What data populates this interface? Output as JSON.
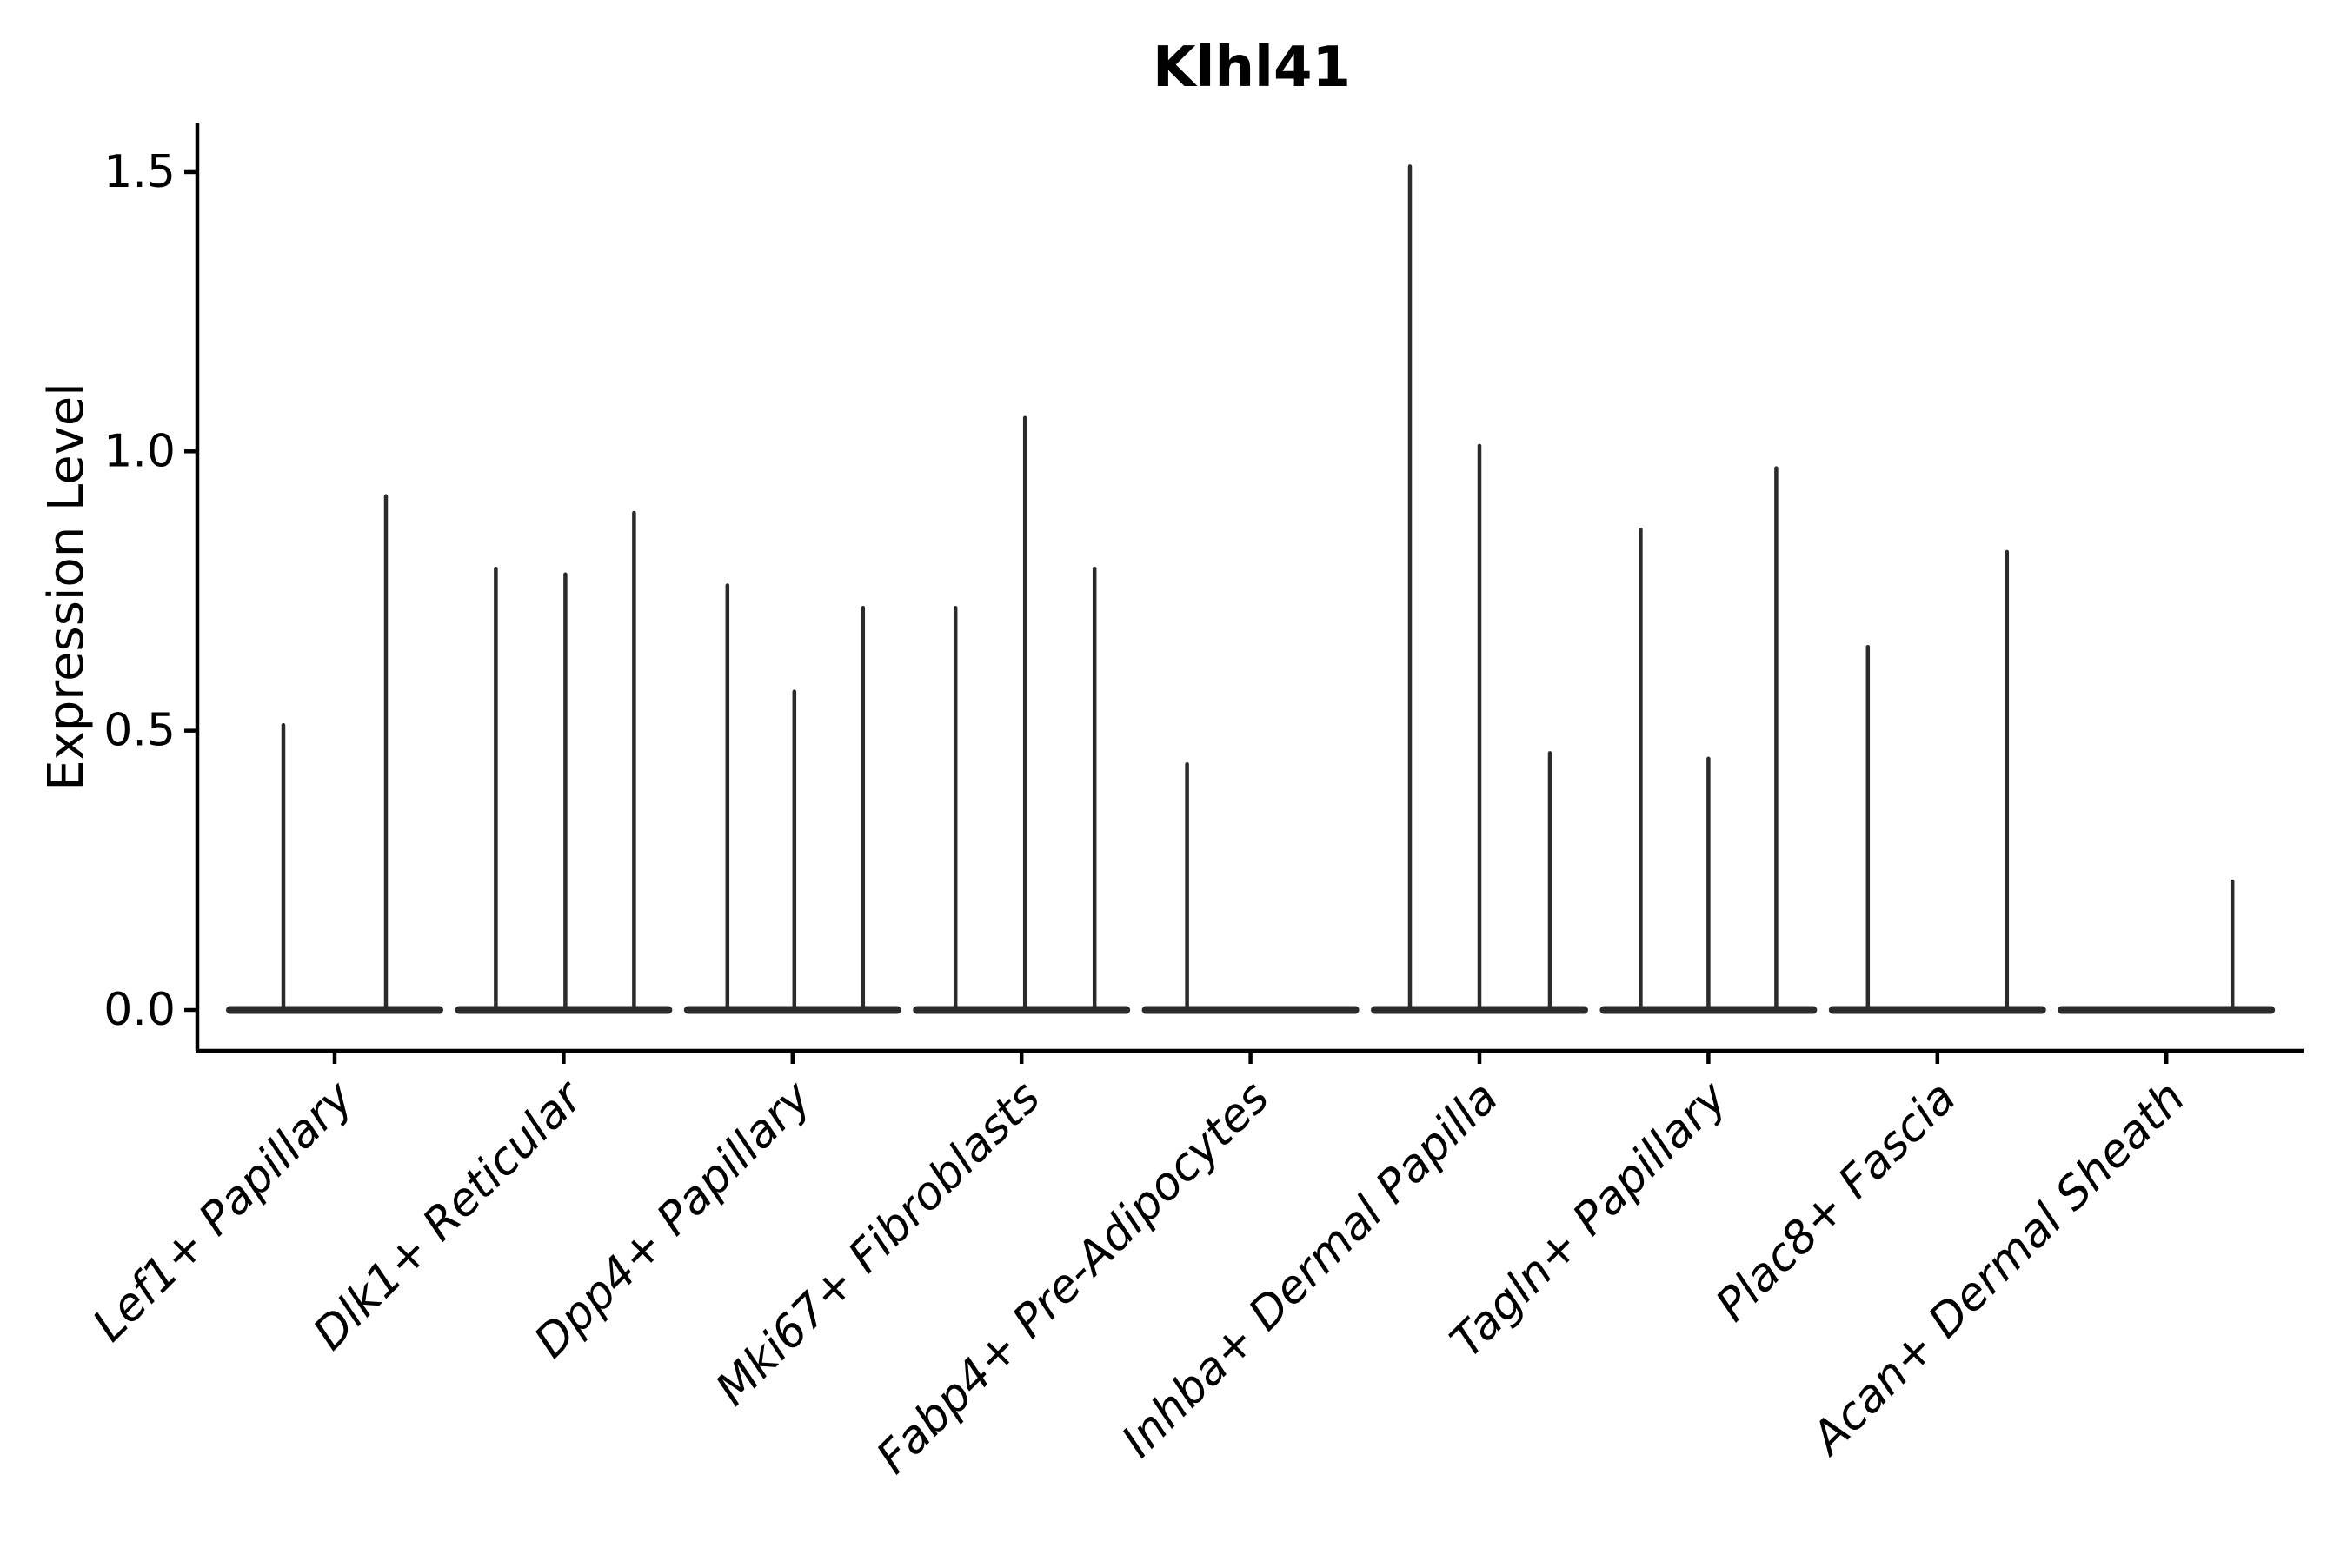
{
  "title": "Klhl41",
  "y_axis": {
    "label": "Expression Level",
    "ticks": [
      {
        "label": "0.0",
        "value": 0.0
      },
      {
        "label": "0.5",
        "value": 0.5
      },
      {
        "label": "1.0",
        "value": 1.0
      },
      {
        "label": "1.5",
        "value": 1.5
      }
    ]
  },
  "x_axis": {
    "tick_labels": [
      "Lef1+ Papillary",
      "Dlk1+ Reticular",
      "Dpp4+ Papillary",
      "Mki67+ Fibroblasts",
      "Fabp4+ Pre-Adipocytes",
      "Inhba+ Dermal Papilla",
      "Tagln+ Papillary",
      "Plac8+ Fascia",
      "Acan+ Dermal Sheath"
    ]
  },
  "chart_data": {
    "type": "violin",
    "title": "Klhl41",
    "xlabel": "",
    "ylabel": "Expression Level",
    "ylim": [
      0,
      1.55
    ],
    "yticks": [
      0.0,
      0.5,
      1.0,
      1.5
    ],
    "grid": false,
    "legend": "none",
    "note": "Needle-like violins: nearly all density collapsed at 0 (flat baseline bar per group) with thin spikes rising to each sub-violin maximum expression value. dx = horizontal offset of each sub-violin spike from its group center in plot pixels.",
    "groups": [
      {
        "label": "Lef1+ Papillary",
        "violins": [
          {
            "dx": -59,
            "max": 0.51
          },
          {
            "dx": 59,
            "max": 0.92
          }
        ]
      },
      {
        "label": "Dlk1+ Reticular",
        "violins": [
          {
            "dx": -78,
            "max": 0.79
          },
          {
            "dx": 2,
            "max": 0.78
          },
          {
            "dx": 81,
            "max": 0.89
          }
        ]
      },
      {
        "label": "Dpp4+ Papillary",
        "violins": [
          {
            "dx": -75,
            "max": 0.76
          },
          {
            "dx": 2,
            "max": 0.57
          },
          {
            "dx": 81,
            "max": 0.72
          }
        ]
      },
      {
        "label": "Mki67+ Fibroblasts",
        "violins": [
          {
            "dx": -76,
            "max": 0.72
          },
          {
            "dx": 4,
            "max": 1.06
          },
          {
            "dx": 84,
            "max": 0.79
          }
        ]
      },
      {
        "label": "Fabp4+ Pre-Adipocytes",
        "violins": [
          {
            "dx": -73,
            "max": 0.44
          }
        ]
      },
      {
        "label": "Inhba+ Dermal Papilla",
        "violins": [
          {
            "dx": -80,
            "max": 1.51
          },
          {
            "dx": 0,
            "max": 1.01
          },
          {
            "dx": 81,
            "max": 0.46
          }
        ]
      },
      {
        "label": "Tagln+ Papillary",
        "violins": [
          {
            "dx": -78,
            "max": 0.86
          },
          {
            "dx": 0,
            "max": 0.45
          },
          {
            "dx": 78,
            "max": 0.97
          }
        ]
      },
      {
        "label": "Plac8+ Fascia",
        "violins": [
          {
            "dx": -80,
            "max": 0.65
          },
          {
            "dx": 80,
            "max": 0.82
          }
        ]
      },
      {
        "label": "Acan+ Dermal Sheath",
        "violins": [
          {
            "dx": 76,
            "max": 0.23
          }
        ]
      }
    ]
  },
  "colors": {
    "violin_line": "#2b2b2b",
    "axis": "#000000",
    "text": "#000000",
    "background": "#ffffff"
  }
}
